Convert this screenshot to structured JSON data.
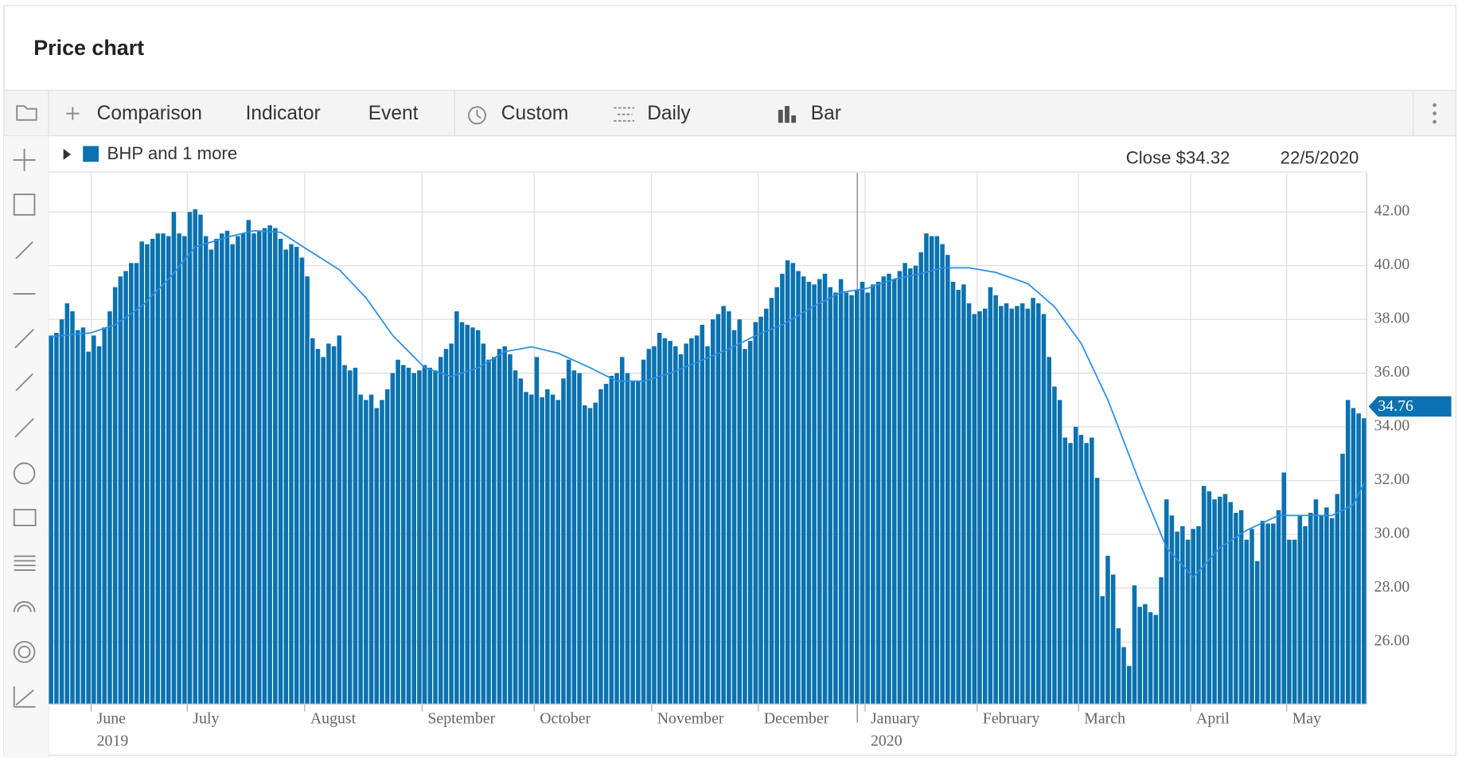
{
  "header": {
    "title": "Price chart"
  },
  "toolbar": {
    "items": [
      "Comparison",
      "Indicator",
      "Event",
      "Custom",
      "Daily",
      "Bar"
    ]
  },
  "chart_data": {
    "type": "bar",
    "legend": "BHP and 1 more",
    "close_label": "Close $34.32",
    "date_label": "22/5/2020",
    "last_price": {
      "value": 34.76,
      "label": "34.76"
    },
    "color": "#0a72b0",
    "values": [
      37.4,
      37.5,
      38.0,
      38.6,
      38.3,
      37.6,
      37.7,
      36.8,
      37.4,
      37.0,
      37.7,
      38.3,
      39.2,
      39.6,
      39.8,
      40.1,
      40.1,
      40.9,
      40.8,
      41.0,
      41.2,
      41.2,
      41.1,
      42.0,
      41.2,
      41.1,
      42.0,
      42.1,
      41.9,
      41.1,
      40.6,
      41.0,
      41.2,
      41.3,
      40.8,
      41.1,
      41.2,
      41.7,
      41.2,
      41.3,
      41.4,
      41.5,
      41.4,
      41.0,
      40.6,
      40.8,
      40.7,
      40.3,
      39.6,
      37.3,
      36.9,
      36.6,
      37.1,
      37.0,
      37.4,
      36.3,
      36.1,
      36.2,
      35.2,
      35.0,
      35.2,
      34.7,
      35.0,
      35.4,
      36.0,
      36.5,
      36.3,
      36.2,
      36.0,
      36.1,
      36.3,
      36.2,
      36.1,
      36.6,
      36.9,
      37.1,
      38.3,
      37.9,
      37.8,
      37.7,
      37.6,
      37.1,
      36.5,
      36.6,
      36.9,
      37.0,
      36.7,
      36.1,
      35.8,
      35.3,
      35.2,
      36.6,
      35.1,
      35.4,
      35.2,
      35.0,
      35.8,
      36.5,
      36.1,
      36.0,
      34.8,
      34.7,
      34.9,
      35.4,
      35.6,
      35.9,
      36.0,
      36.6,
      36.0,
      35.7,
      35.7,
      36.5,
      36.9,
      37.0,
      37.5,
      37.3,
      37.2,
      37.0,
      36.7,
      37.1,
      37.3,
      37.4,
      37.8,
      37.0,
      38.0,
      38.2,
      38.5,
      38.3,
      37.6,
      38.0,
      36.9,
      37.2,
      37.9,
      38.1,
      38.4,
      38.8,
      39.2,
      39.7,
      40.2,
      40.1,
      39.8,
      39.6,
      39.4,
      39.3,
      39.5,
      39.7,
      39.2,
      39.0,
      39.5,
      39.0,
      38.9,
      39.1,
      39.4,
      39.0,
      39.3,
      39.4,
      39.6,
      39.7,
      39.5,
      39.8,
      40.1,
      39.9,
      40.0,
      40.5,
      41.2,
      41.1,
      41.1,
      40.8,
      40.4,
      39.4,
      39.1,
      39.3,
      38.6,
      38.2,
      38.3,
      38.4,
      39.2,
      38.9,
      38.5,
      38.6,
      38.4,
      38.5,
      38.6,
      38.4,
      38.8,
      38.6,
      38.2,
      36.6,
      35.5,
      35.0,
      33.6,
      33.4,
      34.0,
      33.7,
      33.4,
      33.6,
      32.1,
      27.7,
      29.2,
      28.5,
      26.5,
      25.8,
      25.1,
      28.1,
      27.3,
      27.4,
      27.1,
      27.0,
      28.4,
      31.3,
      30.7,
      30.1,
      30.3,
      29.8,
      30.2,
      30.3,
      31.8,
      31.6,
      31.3,
      31.4,
      31.5,
      31.2,
      30.8,
      30.9,
      29.8,
      30.2,
      29.0,
      30.5,
      30.4,
      30.4,
      30.9,
      32.3,
      29.8,
      29.8,
      30.7,
      30.3,
      30.8,
      31.3,
      30.7,
      31.0,
      30.6,
      31.5,
      33.0,
      35.0,
      34.7,
      34.5,
      34.32
    ],
    "months": [
      {
        "label": "June",
        "index": 8,
        "year": "2019"
      },
      {
        "label": "July",
        "index": 26
      },
      {
        "label": "August",
        "index": 48
      },
      {
        "label": "September",
        "index": 70
      },
      {
        "label": "October",
        "index": 91
      },
      {
        "label": "November",
        "index": 113
      },
      {
        "label": "December",
        "index": 133
      },
      {
        "label": "January",
        "index": 153,
        "year": "2020"
      },
      {
        "label": "February",
        "index": 174
      },
      {
        "label": "March",
        "index": 193
      },
      {
        "label": "April",
        "index": 214
      },
      {
        "label": "May",
        "index": 232
      }
    ],
    "moving_average": {
      "color": "#2a8fe6",
      "x": [
        0,
        7.5,
        12,
        17,
        22,
        27,
        33,
        38,
        43,
        48,
        54,
        59,
        64,
        70,
        75,
        80,
        85,
        90,
        95,
        101,
        106,
        111,
        116,
        121,
        127,
        132,
        137,
        143,
        148,
        153,
        158,
        163,
        167,
        172,
        177,
        183,
        188,
        193,
        198,
        204,
        209,
        214,
        219,
        224,
        230,
        235,
        240,
        244,
        246
      ],
      "values": [
        37.36,
        37.5,
        37.8,
        38.5,
        39.5,
        40.7,
        41.06,
        41.3,
        41.24,
        40.6,
        39.85,
        38.8,
        37.4,
        36.2,
        35.87,
        36.2,
        36.8,
        36.98,
        36.74,
        36.2,
        35.7,
        35.7,
        36.0,
        36.4,
        36.9,
        37.4,
        37.8,
        38.5,
        39.0,
        39.16,
        39.5,
        39.7,
        39.92,
        39.92,
        39.75,
        39.33,
        38.47,
        37.1,
        35.0,
        31.9,
        29.5,
        28.4,
        29.5,
        30.15,
        30.7,
        30.7,
        30.7,
        31.1,
        31.9
      ]
    },
    "ylim": [
      23.68,
      43.45
    ],
    "yticks": [
      {
        "value": 26,
        "label": "26.00"
      },
      {
        "value": 28,
        "label": "28.00"
      },
      {
        "value": 30,
        "label": "30.00"
      },
      {
        "value": 32,
        "label": "32.00"
      },
      {
        "value": 34,
        "label": "34.00"
      },
      {
        "value": 36,
        "label": "36.00"
      },
      {
        "value": 38,
        "label": "38.00"
      },
      {
        "value": 40,
        "label": "40.00"
      },
      {
        "value": 42,
        "label": "42.00"
      }
    ],
    "grid": true
  }
}
